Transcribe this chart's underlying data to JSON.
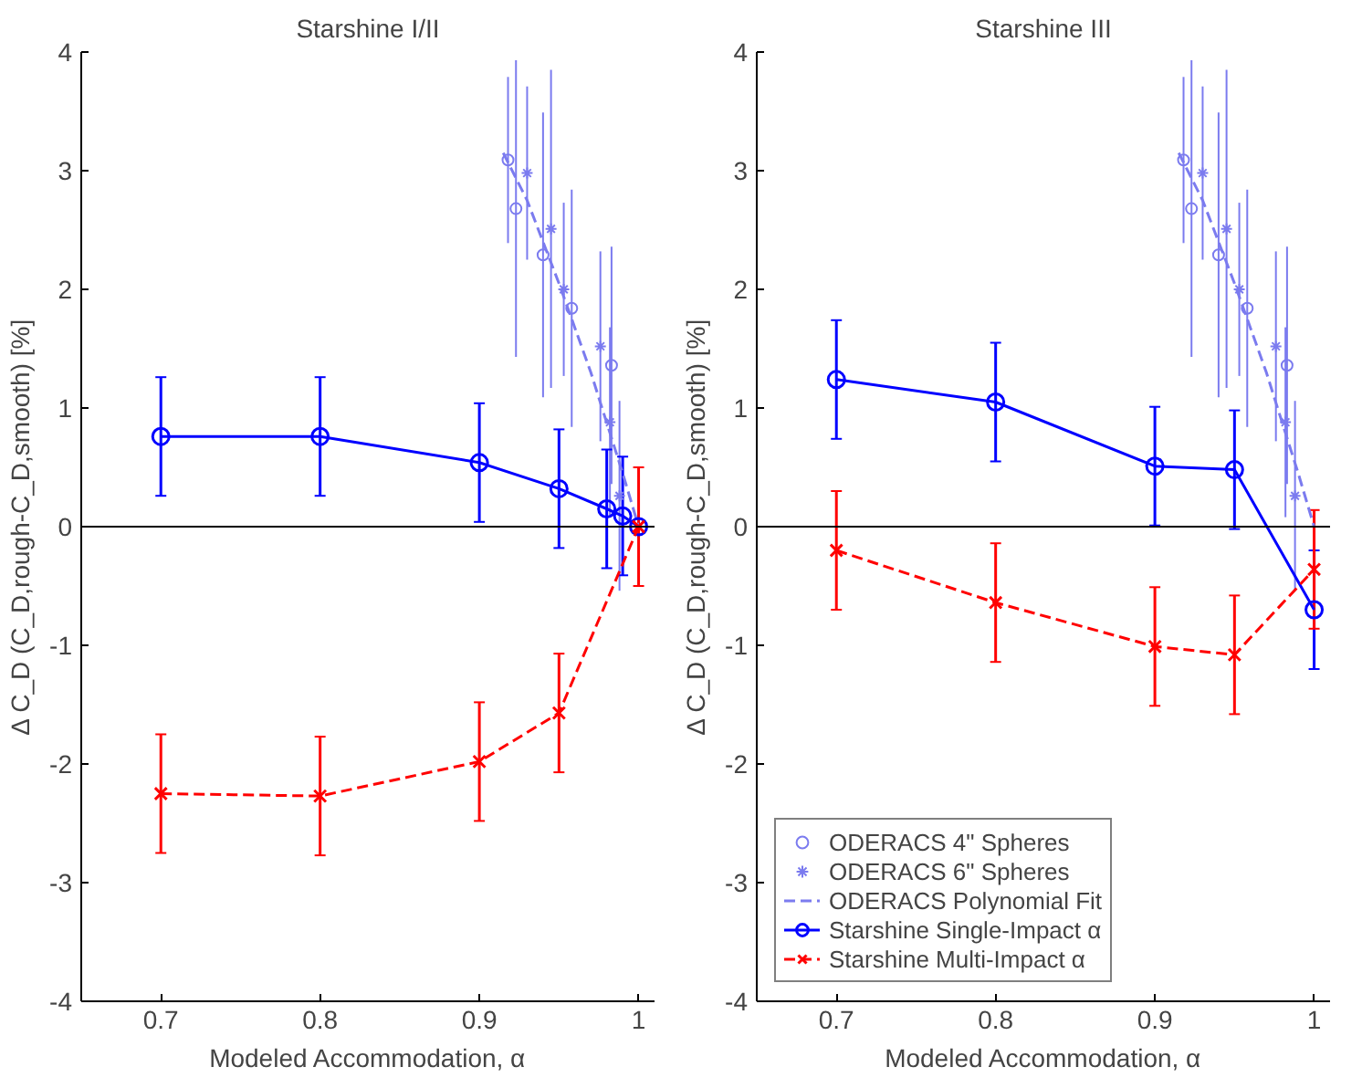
{
  "chart_data": [
    {
      "type": "line",
      "title": "Starshine I/II",
      "xlabel": "Modeled Accommodation, α",
      "ylabel": "Δ C_D (C_D,rough-C_D,smooth) [%]",
      "xlim": [
        0.65,
        1.01
      ],
      "ylim": [
        -4,
        4
      ],
      "xticks": [
        0.7,
        0.8,
        0.9,
        1
      ],
      "yticks": [
        -4,
        -3,
        -2,
        -1,
        0,
        1,
        2,
        3,
        4
      ],
      "grid": false,
      "legend": false,
      "ref_lines": [
        {
          "axis": "y",
          "value": 0,
          "color": "#000000"
        }
      ],
      "series": [
        {
          "type": "scatter",
          "marker": "circle",
          "color": "#7b7bef",
          "x": [
            0.918,
            0.923,
            0.94,
            0.958,
            0.983
          ],
          "values": [
            3.09,
            2.68,
            2.29,
            1.84,
            1.36
          ],
          "errors": [
            0.7,
            1.25,
            1.2,
            1.0,
            1.0
          ]
        },
        {
          "type": "scatter",
          "marker": "cross",
          "color": "#7b7bef",
          "x": [
            0.93,
            0.945,
            0.953,
            0.976,
            0.982,
            0.988
          ],
          "values": [
            2.98,
            2.51,
            2.0,
            1.52,
            0.88,
            0.26
          ],
          "errors": [
            0.73,
            1.34,
            0.73,
            0.8,
            0.8,
            0.8
          ]
        },
        {
          "marker": "none",
          "line_style": "dashed",
          "color": "#7b7bef",
          "x": [
            0.915,
            0.93,
            0.95,
            0.97,
            0.99,
            1.0
          ],
          "values": [
            3.15,
            2.75,
            2.05,
            1.3,
            0.45,
            0
          ]
        },
        {
          "marker": "circle",
          "line_style": "solid",
          "color": "#0000ff",
          "x": [
            0.7,
            0.8,
            0.9,
            0.95,
            0.98,
            0.99,
            1.0
          ],
          "values": [
            0.76,
            0.76,
            0.54,
            0.32,
            0.15,
            0.09,
            0
          ],
          "errors": [
            0.5,
            0.5,
            0.5,
            0.5,
            0.5,
            0.5,
            null
          ]
        },
        {
          "marker": "cross",
          "line_style": "dashed",
          "color": "#ff0000",
          "x": [
            0.7,
            0.8,
            0.9,
            0.95,
            1.0
          ],
          "values": [
            -2.25,
            -2.27,
            -1.98,
            -1.57,
            0
          ],
          "errors": [
            0.5,
            0.5,
            0.5,
            0.5,
            0.5
          ]
        }
      ]
    },
    {
      "type": "line",
      "title": "Starshine III",
      "xlabel": "Modeled Accommodation, α",
      "ylabel": "Δ C_D (C_D,rough-C_D,smooth) [%]",
      "xlim": [
        0.65,
        1.01
      ],
      "ylim": [
        -4,
        4
      ],
      "xticks": [
        0.7,
        0.8,
        0.9,
        1
      ],
      "yticks": [
        -4,
        -3,
        -2,
        -1,
        0,
        1,
        2,
        3,
        4
      ],
      "grid": false,
      "legend": "bottom left",
      "ref_lines": [
        {
          "axis": "y",
          "value": 0,
          "color": "#000000"
        }
      ],
      "series": [
        {
          "type": "scatter",
          "name": "ODERACS 4\" Spheres",
          "marker": "circle",
          "color": "#7b7bef",
          "x": [
            0.918,
            0.923,
            0.94,
            0.958,
            0.983
          ],
          "values": [
            3.09,
            2.68,
            2.29,
            1.84,
            1.36
          ],
          "errors": [
            0.7,
            1.25,
            1.2,
            1.0,
            1.0
          ]
        },
        {
          "type": "scatter",
          "name": "ODERACS 6\" Spheres",
          "marker": "cross",
          "color": "#7b7bef",
          "x": [
            0.93,
            0.945,
            0.953,
            0.976,
            0.982,
            0.988
          ],
          "values": [
            2.98,
            2.51,
            2.0,
            1.52,
            0.88,
            0.26
          ],
          "errors": [
            0.73,
            1.34,
            0.73,
            0.8,
            0.8,
            0.8
          ]
        },
        {
          "name": "ODERACS Polynomial Fit",
          "marker": "none",
          "line_style": "dashed",
          "color": "#7b7bef",
          "x": [
            0.915,
            0.93,
            0.95,
            0.97,
            0.99,
            1.0
          ],
          "values": [
            3.15,
            2.75,
            2.05,
            1.3,
            0.45,
            0
          ]
        },
        {
          "name": "Starshine Single-Impact α",
          "marker": "circle",
          "line_style": "solid",
          "color": "#0000ff",
          "x": [
            0.7,
            0.8,
            0.9,
            0.95,
            1.0
          ],
          "values": [
            1.24,
            1.05,
            0.51,
            0.48,
            -0.7
          ],
          "errors": [
            0.5,
            0.5,
            0.5,
            0.5,
            0.5
          ]
        },
        {
          "name": "Starshine Multi-Impact α",
          "marker": "cross",
          "line_style": "dashed",
          "color": "#ff0000",
          "x": [
            0.7,
            0.8,
            0.9,
            0.95,
            1.0
          ],
          "values": [
            -0.2,
            -0.64,
            -1.01,
            -1.08,
            -0.36
          ],
          "errors": [
            0.5,
            0.5,
            0.5,
            0.5,
            0.5
          ]
        }
      ]
    }
  ]
}
